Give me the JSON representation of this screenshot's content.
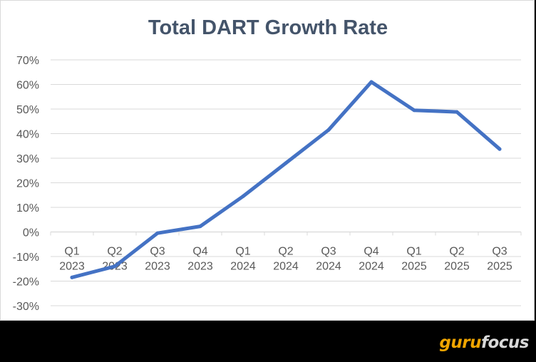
{
  "chart_data": {
    "type": "line",
    "title": "Total DART Growth Rate",
    "xlabel": "",
    "ylabel": "",
    "categories": [
      [
        "Q1",
        "2023"
      ],
      [
        "Q2",
        "2023"
      ],
      [
        "Q3",
        "2023"
      ],
      [
        "Q4",
        "2023"
      ],
      [
        "Q1",
        "2024"
      ],
      [
        "Q2",
        "2024"
      ],
      [
        "Q3",
        "2024"
      ],
      [
        "Q4",
        "2024"
      ],
      [
        "Q1",
        "2025"
      ],
      [
        "Q2",
        "2025"
      ],
      [
        "Q3",
        "2025"
      ]
    ],
    "series": [
      {
        "name": "Total DART Growth Rate",
        "values": [
          -18.5,
          -14,
          -0.5,
          2.3,
          14.5,
          28,
          41.5,
          61,
          49.5,
          48.8,
          33.7
        ]
      }
    ],
    "ylim": [
      -30,
      70
    ],
    "yticks": [
      70,
      60,
      50,
      40,
      30,
      20,
      10,
      0,
      -10,
      -20,
      -30
    ],
    "ytick_format": "percent",
    "grid": true,
    "legend": "none",
    "colors": {
      "line": "#4472c4",
      "grid": "#d9d9d9",
      "axis": "#d9d9d9",
      "text": "#595959",
      "title": "#44546a"
    }
  },
  "branding": {
    "part1": "guru",
    "part2": "focus"
  }
}
